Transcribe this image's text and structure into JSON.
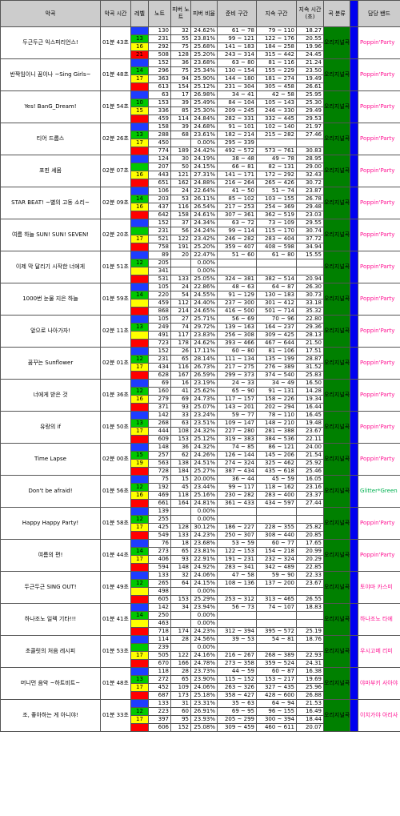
{
  "headers": [
    "악곡",
    "악곡 시간",
    "레벨",
    "노트",
    "피버 노트",
    "피버 비율",
    "준비 구간",
    "지속 구간",
    "지속 시간 (초)",
    "곡 분류",
    "",
    "담당 밴드"
  ],
  "genre_label": "오리지널곡",
  "colors": {
    "easy": "#1e3cff",
    "normal": "#00c800",
    "hard": "#ffff00",
    "expert": "#ff0000",
    "header": "#cccccc",
    "genre": "#008000",
    "blue": "#0000f0"
  },
  "songs": [
    {
      "title": "두근두근 익스피리언스!",
      "time": "01분 43초",
      "band": "Poppin'Party",
      "rows": [
        [
          "",
          "130",
          "32",
          "24.62%",
          "61 ~ 78",
          "79 ~ 110",
          "18.27"
        ],
        [
          "13",
          "231",
          "55",
          "23.81%",
          "99 ~ 121",
          "122 ~ 176",
          "20.55"
        ],
        [
          "16",
          "292",
          "75",
          "25.68%",
          "141 ~ 183",
          "184 ~ 258",
          "19.96"
        ],
        [
          "21",
          "508",
          "128",
          "25.20%",
          "243 ~ 314",
          "315 ~ 442",
          "24.45"
        ]
      ]
    },
    {
      "title": "반짝임이니 꿈이나 ~Sing Girls~",
      "time": "01분 48초",
      "band": "Poppin'Party",
      "rows": [
        [
          "",
          "152",
          "36",
          "23.68%",
          "63 ~ 80",
          "81 ~ 116",
          "21.24"
        ],
        [
          "14",
          "296",
          "75",
          "25.34%",
          "130 ~ 154",
          "155 ~ 229",
          "23.50"
        ],
        [
          "17",
          "363",
          "94",
          "25.90%",
          "144 ~ 180",
          "181 ~ 274",
          "19.49"
        ],
        [
          "",
          "613",
          "154",
          "25.12%",
          "231 ~ 304",
          "305 ~ 458",
          "26.61"
        ]
      ]
    },
    {
      "title": "Yes! BanG_Dream!",
      "time": "01분 54초",
      "band": "Poppin'Party",
      "rows": [
        [
          "",
          "63",
          "17",
          "26.98%",
          "34 ~ 41",
          "42 ~ 58",
          "25.95"
        ],
        [
          "10",
          "153",
          "39",
          "25.49%",
          "84 ~ 104",
          "105 ~ 143",
          "25.30"
        ],
        [
          "15",
          "336",
          "85",
          "25.30%",
          "209 ~ 245",
          "246 ~ 330",
          "29.49"
        ],
        [
          "",
          "459",
          "114",
          "24.84%",
          "282 ~ 331",
          "332 ~ 445",
          "29.53"
        ]
      ]
    },
    {
      "title": "티어 드롭스",
      "time": "02분 26초",
      "band": "Poppin'Party",
      "rows": [
        [
          "",
          "158",
          "39",
          "24.68%",
          "91 ~ 101",
          "102 ~ 140",
          "21.97"
        ],
        [
          "13",
          "288",
          "68",
          "23.61%",
          "182 ~ 214",
          "215 ~ 282",
          "27.46"
        ],
        [
          "17",
          "450",
          "",
          "0.00%",
          "295 ~ 339",
          "",
          ""
        ],
        [
          "",
          "774",
          "189",
          "24.42%",
          "492 ~ 572",
          "573 ~ 761",
          "30.83"
        ]
      ]
    },
    {
      "title": "포핀 셰뭄",
      "time": "02분 07초",
      "band": "Poppin'Party",
      "rows": [
        [
          "",
          "124",
          "30",
          "24.19%",
          "38 ~ 48",
          "49 ~ 78",
          "28.95"
        ],
        [
          "",
          "207",
          "50",
          "24.15%",
          "66 ~ 81",
          "82 ~ 131",
          "29.00"
        ],
        [
          "16",
          "443",
          "121",
          "27.31%",
          "141 ~ 171",
          "172 ~ 292",
          "32.43"
        ],
        [
          "",
          "651",
          "162",
          "24.88%",
          "216 ~ 264",
          "265 ~ 426",
          "30.72"
        ]
      ]
    },
    {
      "title": "STAR BEAT! ~별의 고동 소리~",
      "time": "02분 09초",
      "band": "Poppin'Party",
      "rows": [
        [
          "",
          "106",
          "24",
          "22.64%",
          "41 ~ 50",
          "51 ~ 74",
          "23.87"
        ],
        [
          "14",
          "203",
          "53",
          "26.11%",
          "85 ~ 102",
          "103 ~ 155",
          "26.78"
        ],
        [
          "16",
          "437",
          "116",
          "26.54%",
          "217 ~ 253",
          "254 ~ 369",
          "29.48"
        ],
        [
          "",
          "642",
          "158",
          "24.61%",
          "307 ~ 361",
          "362 ~ 519",
          "23.03"
        ]
      ]
    },
    {
      "title": "여름 하늘 SUN! SUN! SEVEN!",
      "time": "02분 20초",
      "band": "Poppin'Party",
      "rows": [
        [
          "",
          "152",
          "37",
          "24.34%",
          "63 ~ 72",
          "73 ~ 109",
          "29.55"
        ],
        [
          "",
          "231",
          "56",
          "24.24%",
          "99 ~ 114",
          "115 ~ 170",
          "30.74"
        ],
        [
          "17",
          "521",
          "122",
          "23.42%",
          "246 ~ 282",
          "283 ~ 404",
          "37.72"
        ],
        [
          "",
          "758",
          "191",
          "25.20%",
          "359 ~ 407",
          "408 ~ 598",
          "34.94"
        ]
      ]
    },
    {
      "title": "이제 막 달리기 시작한 너에게",
      "time": "01분 51초",
      "band": "Poppin'Party",
      "rows": [
        [
          "",
          "89",
          "20",
          "22.47%",
          "51 ~ 60",
          "61 ~ 80",
          "15.55"
        ],
        [
          "12",
          "205",
          "",
          "0.00%",
          "",
          "",
          ""
        ],
        [
          "",
          "341",
          "",
          "0.00%",
          "",
          "",
          ""
        ],
        [
          "",
          "531",
          "133",
          "25.05%",
          "324 ~ 381",
          "382 ~ 514",
          "20.94"
        ]
      ]
    },
    {
      "title": "1000번 눈물 지은 하늘",
      "time": "01분 59초",
      "band": "Poppin'Party",
      "rows": [
        [
          "",
          "105",
          "24",
          "22.86%",
          "48 ~ 63",
          "64 ~ 87",
          "26.30"
        ],
        [
          "14",
          "220",
          "54",
          "24.55%",
          "91 ~ 129",
          "130 ~ 183",
          "30.73"
        ],
        [
          "",
          "459",
          "112",
          "24.40%",
          "237 ~ 300",
          "301 ~ 412",
          "33.18"
        ],
        [
          "",
          "868",
          "214",
          "24.65%",
          "416 ~ 500",
          "501 ~ 714",
          "35.32"
        ]
      ]
    },
    {
      "title": "앞으로 나아가자!",
      "time": "02분 11초",
      "band": "Poppin'Party",
      "rows": [
        [
          "",
          "105",
          "27",
          "25.71%",
          "56 ~ 69",
          "70 ~ 96",
          "22.80"
        ],
        [
          "13",
          "249",
          "74",
          "29.72%",
          "139 ~ 163",
          "164 ~ 237",
          "29.36"
        ],
        [
          "",
          "491",
          "117",
          "23.83%",
          "256 ~ 308",
          "309 ~ 425",
          "28.13"
        ],
        [
          "",
          "723",
          "178",
          "24.62%",
          "393 ~ 466",
          "467 ~ 644",
          "21.50"
        ]
      ]
    },
    {
      "title": "꿈꾸는 Sunflower",
      "time": "02분 01초",
      "band": "Poppin'Party",
      "rows": [
        [
          "",
          "152",
          "26",
          "17.11%",
          "60 ~ 80",
          "81 ~ 106",
          "17.51"
        ],
        [
          "12",
          "231",
          "65",
          "28.14%",
          "111 ~ 134",
          "135 ~ 199",
          "28.87"
        ],
        [
          "17",
          "434",
          "116",
          "26.73%",
          "217 ~ 275",
          "276 ~ 389",
          "31.52"
        ],
        [
          "",
          "628",
          "167",
          "26.59%",
          "299 ~ 373",
          "374 ~ 540",
          "25.83"
        ]
      ]
    },
    {
      "title": "너에게 받은 것",
      "time": "01분 36초",
      "band": "Poppin'Party",
      "rows": [
        [
          "",
          "69",
          "16",
          "23.19%",
          "24 ~ 33",
          "34 ~ 49",
          "16.50"
        ],
        [
          "12",
          "160",
          "41",
          "25.62%",
          "65 ~ 90",
          "91 ~ 131",
          "14.28"
        ],
        [
          "16",
          "279",
          "69",
          "24.73%",
          "117 ~ 157",
          "158 ~ 226",
          "19.34"
        ],
        [
          "",
          "371",
          "93",
          "25.07%",
          "143 ~ 201",
          "202 ~ 294",
          "16.44"
        ]
      ]
    },
    {
      "title": "유랑의 if",
      "time": "01분 50초",
      "band": "Poppin'Party",
      "rows": [
        [
          "",
          "142",
          "33",
          "23.24%",
          "59 ~ 77",
          "78 ~ 110",
          "16.45"
        ],
        [
          "13",
          "268",
          "63",
          "23.51%",
          "109 ~ 147",
          "148 ~ 210",
          "19.48"
        ],
        [
          "17",
          "444",
          "108",
          "24.32%",
          "227 ~ 280",
          "281 ~ 388",
          "23.67"
        ],
        [
          "",
          "609",
          "153",
          "25.12%",
          "319 ~ 383",
          "384 ~ 536",
          "22.11"
        ]
      ]
    },
    {
      "title": "Time Lapse",
      "time": "02분 00초",
      "band": "Poppin'Party",
      "rows": [
        [
          "",
          "148",
          "36",
          "24.32%",
          "74 ~ 85",
          "86 ~ 121",
          "24.00"
        ],
        [
          "15",
          "257",
          "62",
          "24.26%",
          "126 ~ 144",
          "145 ~ 206",
          "21.54"
        ],
        [
          "19",
          "563",
          "138",
          "24.51%",
          "274 ~ 324",
          "325 ~ 462",
          "25.92"
        ],
        [
          "",
          "728",
          "184",
          "25.27%",
          "387 ~ 434",
          "435 ~ 618",
          "25.46"
        ]
      ]
    },
    {
      "title": "Don't be afraid!",
      "time": "01분 56초",
      "band": "Glitter*Green",
      "rows": [
        [
          "",
          "75",
          "15",
          "20.00%",
          "36 ~ 44",
          "45 ~ 59",
          "16.05"
        ],
        [
          "12",
          "192",
          "45",
          "23.44%",
          "99 ~ 117",
          "118 ~ 162",
          "23.16"
        ],
        [
          "16",
          "469",
          "118",
          "25.16%",
          "230 ~ 282",
          "283 ~ 400",
          "23.37"
        ],
        [
          "",
          "661",
          "164",
          "24.81%",
          "361 ~ 433",
          "434 ~ 597",
          "27.44"
        ]
      ]
    },
    {
      "title": "Happy Happy Party!",
      "time": "01분 58초",
      "band": "Poppin'Party",
      "rows": [
        [
          "",
          "139",
          "",
          "0.00%",
          "",
          "",
          ""
        ],
        [
          "12",
          "255",
          "",
          "0.00%",
          "",
          "",
          ""
        ],
        [
          "17",
          "425",
          "128",
          "30.12%",
          "186 ~ 227",
          "228 ~ 355",
          "25.82"
        ],
        [
          "",
          "549",
          "133",
          "24.23%",
          "250 ~ 307",
          "308 ~ 440",
          "20.85"
        ]
      ]
    },
    {
      "title": "여름의 편!",
      "time": "01분 44초",
      "band": "Poppin'Party",
      "rows": [
        [
          "",
          "76",
          "18",
          "23.68%",
          "53 ~ 59",
          "60 ~ 77",
          "17.65"
        ],
        [
          "14",
          "273",
          "65",
          "23.81%",
          "122 ~ 153",
          "154 ~ 218",
          "20.99"
        ],
        [
          "17",
          "406",
          "93",
          "22.91%",
          "191 ~ 231",
          "232 ~ 324",
          "20.29"
        ],
        [
          "",
          "594",
          "148",
          "24.92%",
          "283 ~ 341",
          "342 ~ 489",
          "22.85"
        ]
      ]
    },
    {
      "title": "두근두근 SING OUT!",
      "time": "01분 49초",
      "band": "토야마 카스미",
      "rows": [
        [
          "",
          "133",
          "32",
          "24.06%",
          "47 ~ 58",
          "59 ~ 90",
          "22.33"
        ],
        [
          "12",
          "265",
          "64",
          "24.15%",
          "108 ~ 136",
          "137 ~ 200",
          "23.67"
        ],
        [
          "",
          "498",
          "",
          "0.00%",
          "",
          "",
          ""
        ],
        [
          "",
          "605",
          "153",
          "25.29%",
          "253 ~ 312",
          "313 ~ 465",
          "26.55"
        ]
      ]
    },
    {
      "title": "하나조노 일렉 기타!!!",
      "time": "01분 41초",
      "band": "하나조노 타에",
      "rows": [
        [
          "",
          "142",
          "34",
          "23.94%",
          "56 ~ 73",
          "74 ~ 107",
          "18.83"
        ],
        [
          "14",
          "250",
          "",
          "0.00%",
          "",
          "",
          ""
        ],
        [
          "",
          "463",
          "",
          "0.00%",
          "",
          "",
          ""
        ],
        [
          "",
          "718",
          "174",
          "24.23%",
          "312 ~ 394",
          "395 ~ 572",
          "25.19"
        ]
      ]
    },
    {
      "title": "초콜릿의 처음 레시피",
      "time": "01분 53초",
      "band": "우시고메 리미",
      "rows": [
        [
          "",
          "114",
          "28",
          "24.56%",
          "39 ~ 53",
          "54 ~ 81",
          "18.76"
        ],
        [
          "",
          "239",
          "",
          "0.00%",
          "",
          "",
          ""
        ],
        [
          "17",
          "505",
          "122",
          "24.16%",
          "216 ~ 267",
          "268 ~ 389",
          "22.93"
        ],
        [
          "",
          "670",
          "166",
          "24.78%",
          "273 ~ 358",
          "359 ~ 524",
          "24.31"
        ]
      ]
    },
    {
      "title": "머니먼 음악 ~하트비트~",
      "time": "01분 48초",
      "band": "야마부키 사아야",
      "rows": [
        [
          "",
          "118",
          "28",
          "23.73%",
          "44 ~ 59",
          "60 ~ 87",
          "16.38"
        ],
        [
          "13",
          "272",
          "65",
          "23.90%",
          "115 ~ 152",
          "153 ~ 217",
          "19.69"
        ],
        [
          "17",
          "452",
          "109",
          "24.06%",
          "263 ~ 326",
          "327 ~ 435",
          "25.96"
        ],
        [
          "",
          "687",
          "173",
          "25.18%",
          "358 ~ 427",
          "428 ~ 600",
          "26.88"
        ]
      ]
    },
    {
      "title": "조, 좋아하는 게 아니야!",
      "time": "01분 33초",
      "band": "이치가야 아리사",
      "rows": [
        [
          "",
          "133",
          "31",
          "23.31%",
          "35 ~ 63",
          "64 ~ 94",
          "21.53"
        ],
        [
          "12",
          "223",
          "60",
          "26.91%",
          "69 ~ 95",
          "96 ~ 155",
          "16.49"
        ],
        [
          "17",
          "397",
          "95",
          "23.93%",
          "205 ~ 299",
          "300 ~ 394",
          "18.44"
        ],
        [
          "",
          "606",
          "152",
          "25.08%",
          "309 ~ 459",
          "460 ~ 611",
          "20.07"
        ]
      ]
    }
  ]
}
